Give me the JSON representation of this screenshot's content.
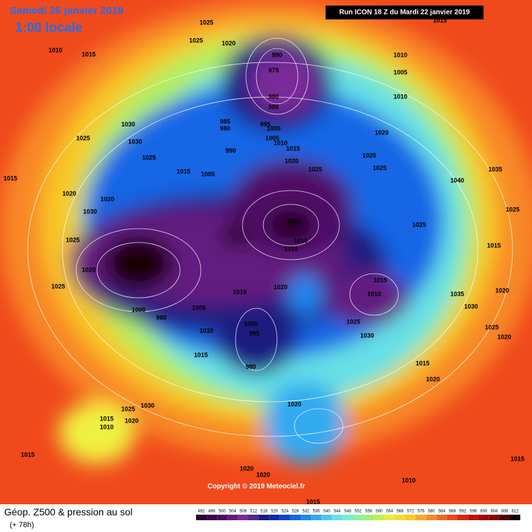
{
  "header": {
    "date": "Samedi 26 janvier 2019",
    "time": "1:00 locale",
    "run": "Run ICON 18 Z du Mardi 22 janvier 2019"
  },
  "footer": {
    "title": "Géop. Z500 & pression au sol",
    "lead": "(+ 78h)",
    "copyright": "Copyright © 2019 Meteociel.fr"
  },
  "scale": {
    "labels": [
      492,
      496,
      500,
      504,
      508,
      512,
      516,
      520,
      524,
      528,
      532,
      536,
      540,
      544,
      548,
      552,
      556,
      560,
      564,
      568,
      572,
      576,
      580,
      584,
      588,
      592,
      596,
      600,
      604,
      608,
      612
    ],
    "colors": [
      "#2a0033",
      "#3d004d",
      "#500a66",
      "#641a80",
      "#7a2a99",
      "#4a2a8c",
      "#1a1a80",
      "#0a2aa6",
      "#0a44cc",
      "#1466e6",
      "#1e88f0",
      "#30aaf0",
      "#4cc8f0",
      "#66e0e6",
      "#7af0c8",
      "#8cf0a0",
      "#a0f078",
      "#c0f050",
      "#e0f040",
      "#f0e030",
      "#f8c828",
      "#f8a828",
      "#f88828",
      "#f06820",
      "#e84818",
      "#d82810",
      "#c01010",
      "#a00808",
      "#800808",
      "#500404",
      "#1a0000"
    ]
  },
  "pressure_labels": [
    990,
    975,
    980,
    985,
    985,
    980,
    990,
    995,
    1000,
    1005,
    1010,
    1015,
    1020,
    1025,
    1010,
    1005,
    1010,
    1020,
    1025,
    1025,
    1030,
    1025,
    1030,
    1025,
    1015,
    1005,
    1015,
    1020,
    1030,
    1020,
    1025,
    1020,
    1025,
    1005,
    1010,
    1015,
    1020,
    1015,
    1015,
    1010,
    1025,
    1030,
    1000,
    980,
    1005,
    1010,
    1015,
    1005,
    995,
    980,
    1020,
    1015,
    1020,
    1020,
    1015,
    1010,
    1020,
    1030,
    1025,
    1015,
    1010,
    1015,
    1020,
    1040,
    1035,
    1025,
    1015,
    1020,
    1025,
    1020,
    1015,
    1025,
    1020,
    1010,
    1015,
    1025,
    1015,
    1035,
    1030,
    1025
  ]
}
